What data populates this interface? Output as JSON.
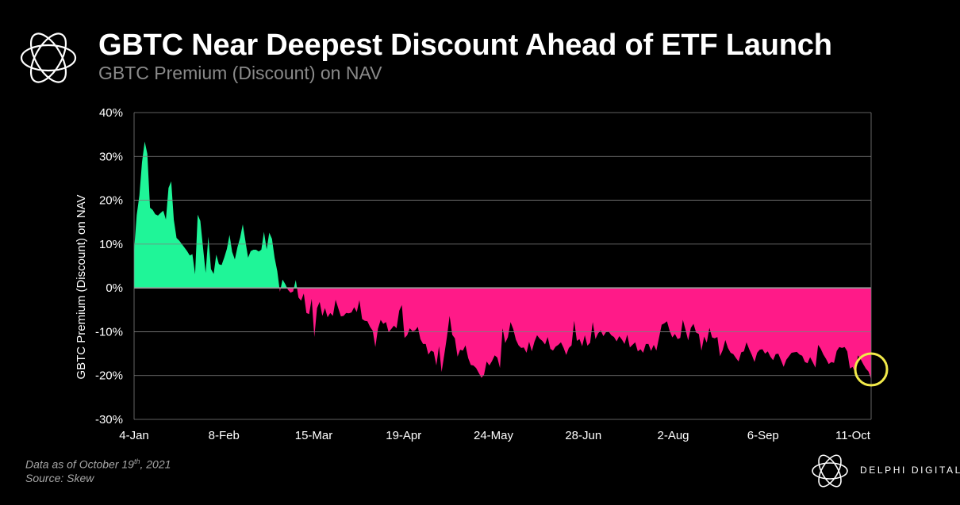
{
  "header": {
    "title": "GBTC Near Deepest Discount Ahead of ETF Launch",
    "subtitle": "GBTC Premium (Discount) on NAV"
  },
  "footer": {
    "note_prefix": "Data as of October 19",
    "note_sup": "th",
    "note_suffix": ", 2021",
    "source": "Source: Skew",
    "brand": "DELPHI DIGITAL"
  },
  "colors": {
    "premium": "#1ff598",
    "discount": "#ff1a88",
    "highlight_circle": "#f2ea4a",
    "background": "#000000",
    "grid": "#7f7f7f"
  },
  "chart_data": {
    "type": "area",
    "ylabel": "GBTC Premium (Discount) on NAV",
    "xlabel": "",
    "ylim": [
      -30,
      40
    ],
    "yticks": [
      40,
      30,
      20,
      10,
      0,
      -10,
      -20,
      -30
    ],
    "ytick_labels": [
      "40%",
      "30%",
      "20%",
      "10%",
      "0%",
      "-10%",
      "-20%",
      "-30%"
    ],
    "xtick_labels": [
      "4-Jan",
      "8-Feb",
      "15-Mar",
      "19-Apr",
      "24-May",
      "28-Jun",
      "2-Aug",
      "6-Sep",
      "11-Oct"
    ],
    "grid": true,
    "annotation": "circle around latest value",
    "series": [
      {
        "values": [
          8.6,
          16.6,
          21.1,
          28.7,
          33.4,
          30.6,
          18.3,
          17.8,
          16.8,
          16.5,
          17.1,
          17.6,
          15.6,
          22.8,
          24.3,
          15.5,
          11.4,
          10.8,
          10.0,
          9.2,
          8.4,
          7.4,
          7.7,
          3.1,
          16.7,
          15.3,
          9.2,
          3.4,
          11.7,
          4.3,
          3.2,
          7.6,
          5.4,
          5.2,
          6.9,
          8.9,
          12.1,
          8.2,
          6.5,
          9.3,
          11.5,
          14.5,
          10.6,
          6.9,
          8.4,
          8.7,
          8.7,
          8.3,
          8.7,
          12.8,
          8.8,
          12.6,
          11.2,
          6.9,
          3.8,
          -0.9,
          1.9,
          0.9,
          -0.4,
          -1.1,
          -0.8,
          1.8,
          -2.2,
          -2.9,
          -1.3,
          -5.7,
          -6.0,
          -2.5,
          -11.2,
          -4.6,
          -3.2,
          -6.4,
          -4.6,
          -6.7,
          -5.7,
          -6.4,
          -2.7,
          -4.6,
          -6.5,
          -6.4,
          -5.7,
          -5.8,
          -5.6,
          -4.4,
          -5.5,
          -2.8,
          -7.1,
          -7.5,
          -7.6,
          -8.9,
          -9.8,
          -13.5,
          -9.3,
          -7.3,
          -8.2,
          -7.8,
          -10.1,
          -9.4,
          -8.6,
          -9.2,
          -5.2,
          -3.9,
          -11.4,
          -10.8,
          -9.2,
          -9.9,
          -9.7,
          -8.9,
          -11.7,
          -12.8,
          -12.8,
          -15.2,
          -14.3,
          -14.6,
          -17.7,
          -13.3,
          -19.2,
          -15.2,
          -11.2,
          -6.4,
          -10.7,
          -11.5,
          -15.7,
          -14.1,
          -14.3,
          -13.1,
          -16.0,
          -17.6,
          -17.7,
          -18.3,
          -19.4,
          -20.5,
          -19.8,
          -16.8,
          -17.7,
          -16.7,
          -15.4,
          -15.9,
          -18.3,
          -9.2,
          -12.6,
          -11.2,
          -7.8,
          -9.4,
          -11.8,
          -13.1,
          -13.7,
          -13.6,
          -14.8,
          -12.3,
          -14.5,
          -12.3,
          -10.8,
          -11.6,
          -12.1,
          -12.9,
          -11.2,
          -13.9,
          -14.3,
          -13.4,
          -13.0,
          -12.4,
          -13.7,
          -15.3,
          -13.7,
          -13.1,
          -7.5,
          -12.1,
          -11.7,
          -13.3,
          -10.8,
          -13.2,
          -12.5,
          -7.8,
          -11.7,
          -10.4,
          -9.7,
          -11.0,
          -10.1,
          -10.0,
          -10.8,
          -11.2,
          -12.2,
          -11.0,
          -11.8,
          -12.8,
          -10.7,
          -13.6,
          -13.0,
          -12.4,
          -14.5,
          -14.0,
          -14.8,
          -12.8,
          -12.8,
          -14.4,
          -13.0,
          -14.3,
          -11.3,
          -8.4,
          -8.1,
          -7.6,
          -9.8,
          -11.3,
          -10.5,
          -11.7,
          -11.4,
          -7.3,
          -9.6,
          -12.0,
          -9.1,
          -8.2,
          -10.2,
          -10.5,
          -14.3,
          -11.1,
          -12.5,
          -9.1,
          -11.3,
          -11.5,
          -11.2,
          -15.6,
          -14.2,
          -11.9,
          -13.7,
          -14.8,
          -15.1,
          -16.0,
          -16.8,
          -14.7,
          -14.5,
          -12.4,
          -14.0,
          -15.3,
          -16.9,
          -14.8,
          -14.1,
          -14.0,
          -15.0,
          -14.5,
          -15.7,
          -16.5,
          -15.1,
          -15.0,
          -16.5,
          -18.0,
          -16.4,
          -15.6,
          -14.8,
          -14.7,
          -14.6,
          -15.2,
          -15.5,
          -16.9,
          -17.2,
          -15.8,
          -17.0,
          -18.2,
          -13.0,
          -13.9,
          -15.2,
          -16.2,
          -17.4,
          -16.9,
          -17.1,
          -14.4,
          -13.5,
          -13.7,
          -13.5,
          -14.5,
          -18.4,
          -18.0,
          -19.3,
          -15.4,
          -16.2,
          -17.4,
          -18.4,
          -19.1,
          -20.8
        ]
      }
    ]
  }
}
